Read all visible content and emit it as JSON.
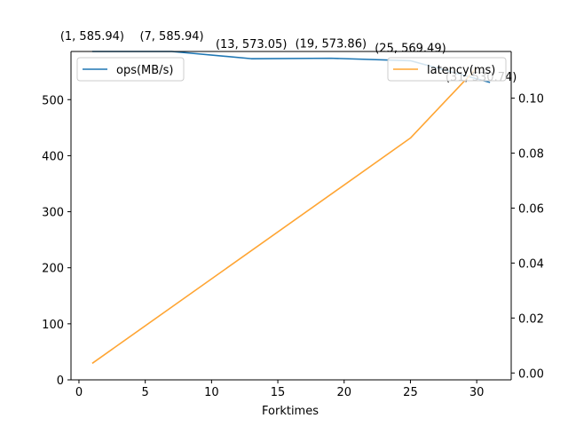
{
  "chart_data": {
    "type": "line",
    "xlabel": "Forktimes",
    "xlim": [
      -0.6,
      32.6
    ],
    "xticks": [
      0,
      5,
      10,
      15,
      20,
      25,
      30
    ],
    "left_axis": {
      "ylim": [
        0,
        585.94
      ],
      "ticks": [
        0,
        100,
        200,
        300,
        400,
        500
      ]
    },
    "right_axis": {
      "ylim": [
        -0.0025,
        0.117
      ],
      "ticks": [
        "0.00",
        "0.02",
        "0.04",
        "0.06",
        "0.08",
        "0.10"
      ],
      "tick_values": [
        0,
        0.02,
        0.04,
        0.06,
        0.08,
        0.1
      ]
    },
    "series": [
      {
        "name": "ops(MB/s)",
        "axis": "left",
        "color": "#1f77b4",
        "x": [
          1,
          7,
          13,
          19,
          25,
          31
        ],
        "values": [
          585.94,
          585.94,
          573.05,
          573.86,
          569.49,
          530.74
        ],
        "labels": [
          "(1, 585.94)",
          "(7, 585.94)",
          "(13, 573.05)",
          "(19, 573.86)",
          "(25, 569.49)",
          "(31, 530.74)"
        ]
      },
      {
        "name": "latency(ms)",
        "axis": "right",
        "color": "#ffa533",
        "x": [
          1,
          25,
          30
        ],
        "values": [
          0.0035,
          0.0855,
          0.111
        ]
      }
    ],
    "legend": {
      "left": "upper-left",
      "right": "upper-right"
    },
    "grid": false
  }
}
